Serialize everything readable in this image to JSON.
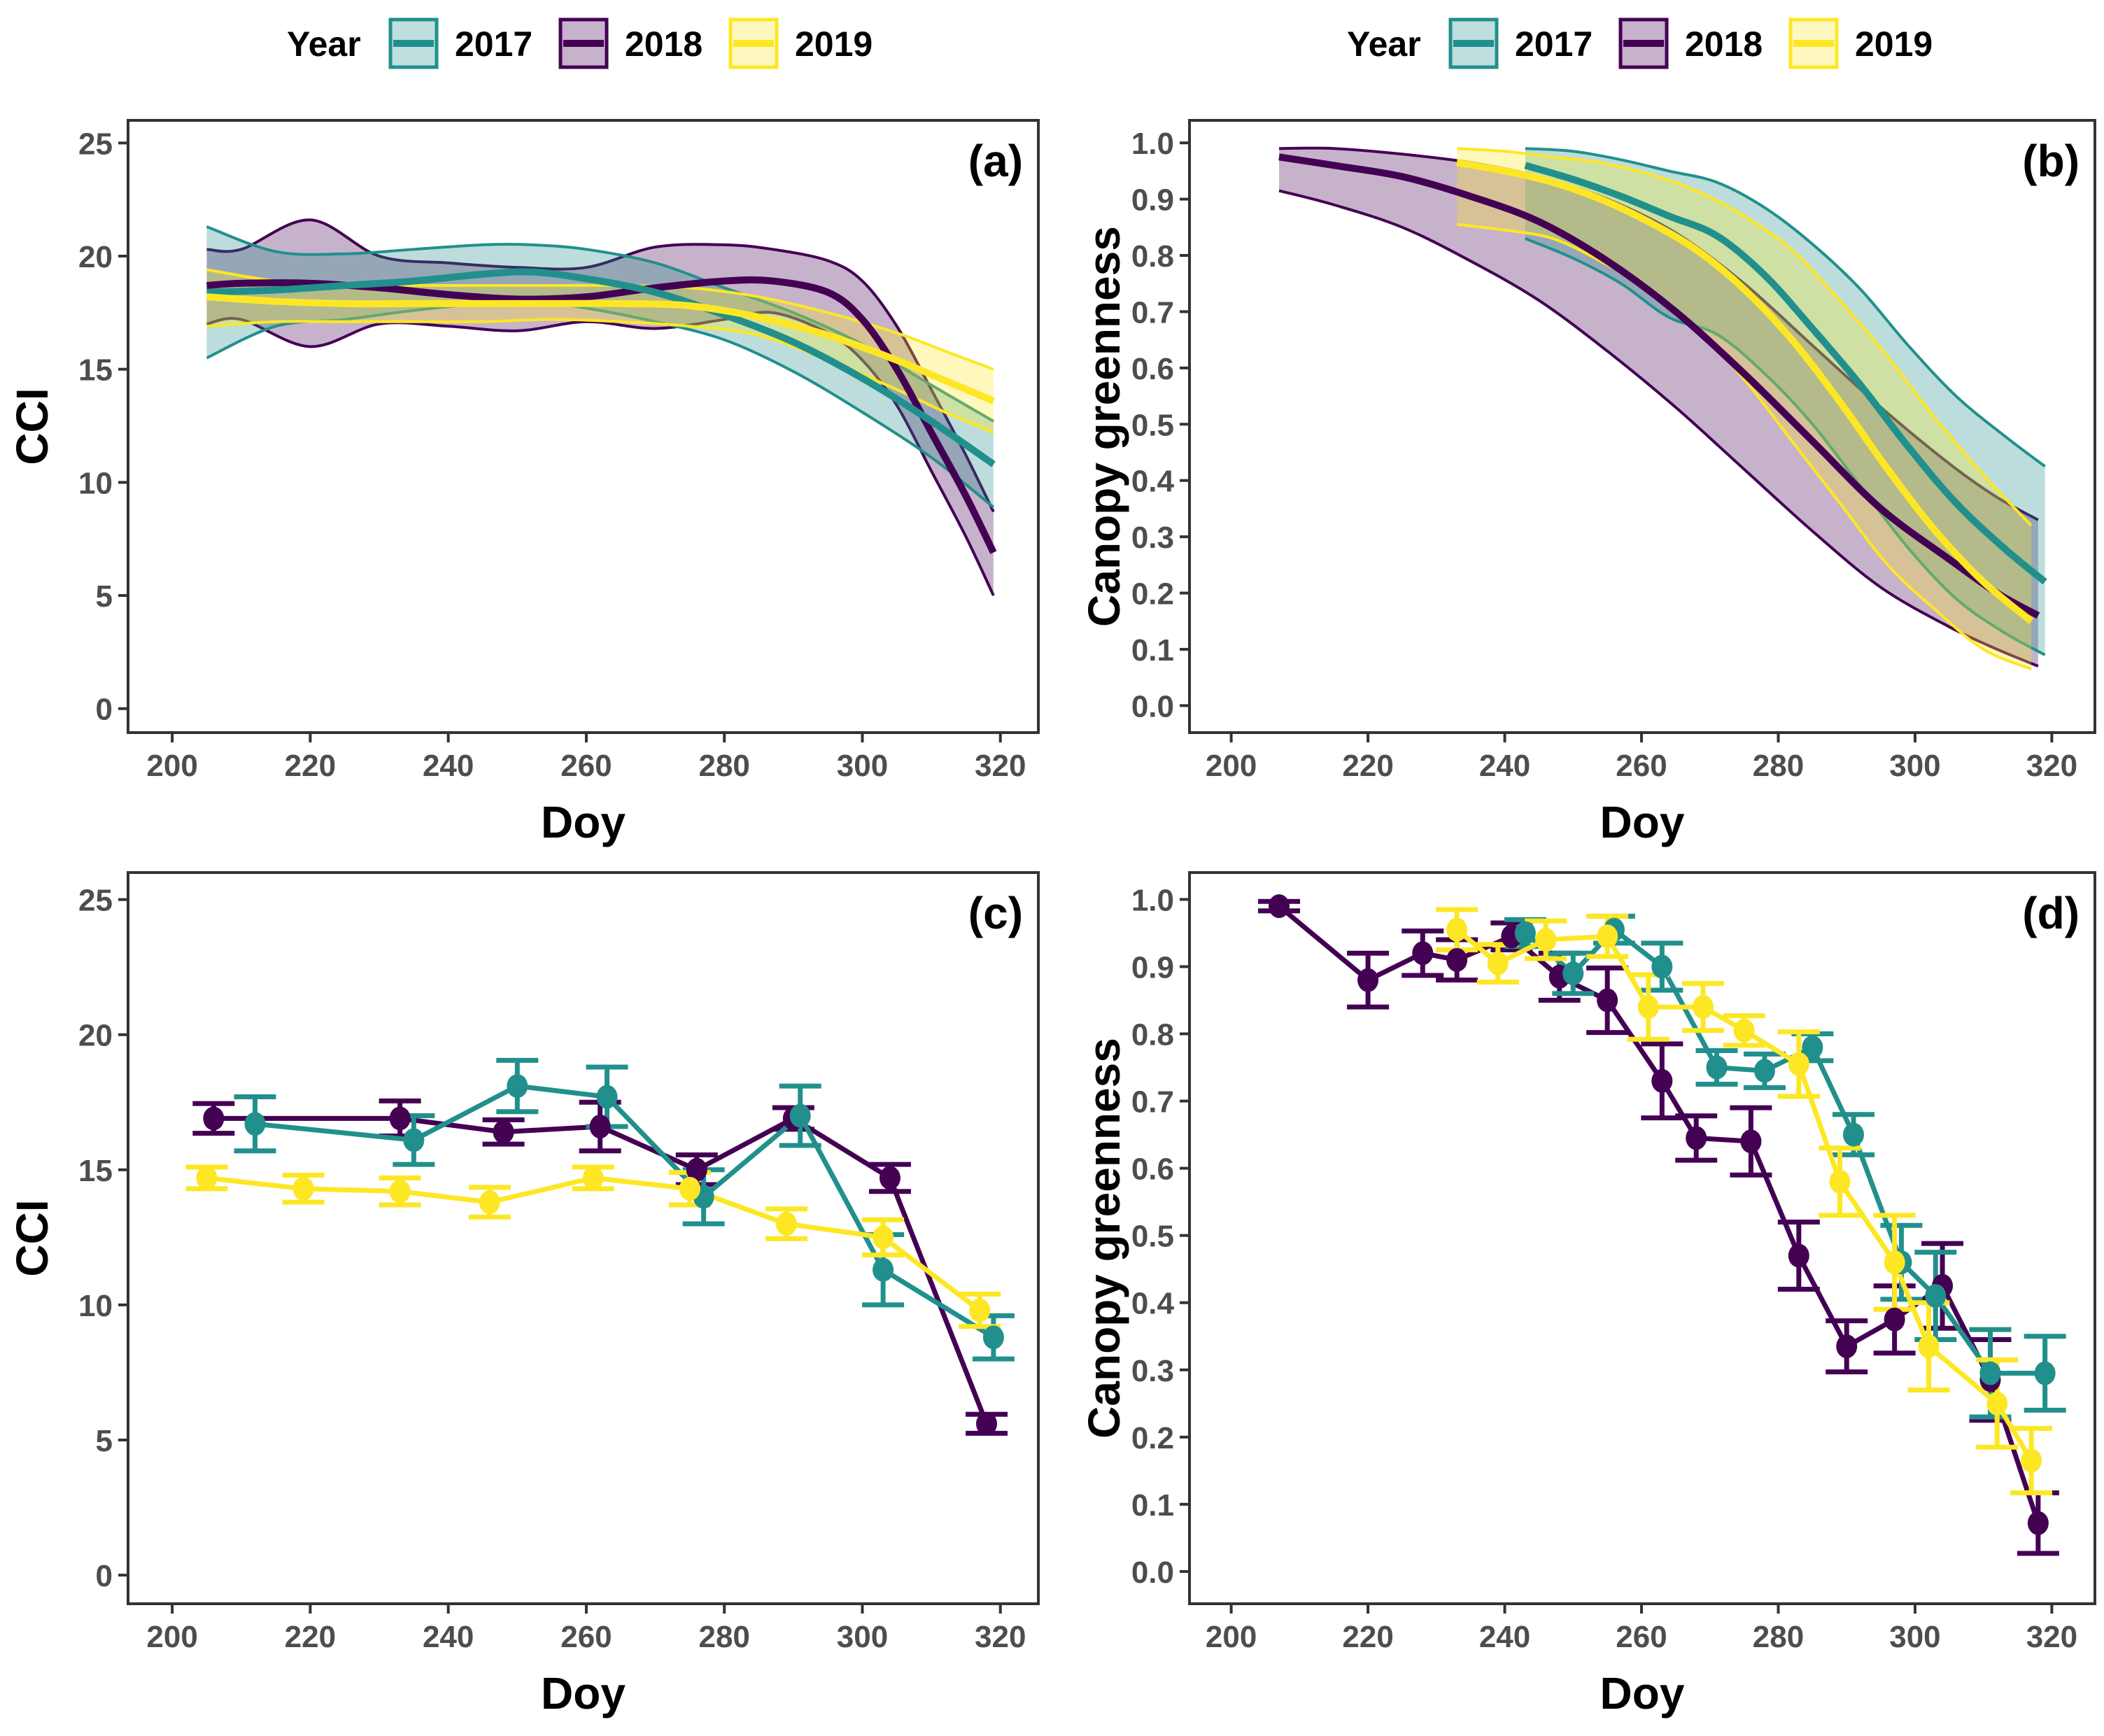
{
  "legend": {
    "title": "Year",
    "items": [
      {
        "label": "2017",
        "color": "#21908C",
        "fill": "#BFDFDE"
      },
      {
        "label": "2018",
        "color": "#440154",
        "fill": "#C7B2CC"
      },
      {
        "label": "2019",
        "color": "#FDE725",
        "fill": "#FEF8C0"
      }
    ]
  },
  "chart_data": [
    {
      "panel": "(a)",
      "type": "line",
      "subtype": "smoothed-with-confidence-band",
      "xlabel": "Doy",
      "ylabel": "CCI",
      "xlim": [
        193.6,
        325.5
      ],
      "ylim": [
        -1.06,
        26.0
      ],
      "xticks": [
        200,
        220,
        240,
        260,
        280,
        300,
        320
      ],
      "yticks": [
        0,
        5,
        10,
        15,
        20,
        25
      ],
      "grid": false,
      "series": [
        {
          "name": "2017",
          "x": [
            205,
            215,
            225,
            235,
            245,
            252,
            260,
            270,
            280,
            290,
            300,
            310,
            319
          ],
          "y": [
            18.4,
            18.5,
            18.7,
            18.9,
            19.2,
            19.3,
            19.0,
            18.4,
            17.4,
            16.2,
            14.6,
            12.7,
            10.8
          ],
          "lower": [
            15.5,
            16.9,
            17.2,
            17.6,
            17.9,
            18.0,
            17.7,
            17.1,
            16.3,
            14.9,
            13.1,
            11.1,
            8.9
          ],
          "upper": [
            21.3,
            20.2,
            20.1,
            20.3,
            20.5,
            20.5,
            20.3,
            19.7,
            18.6,
            17.5,
            16.1,
            14.3,
            12.7
          ]
        },
        {
          "name": "2018",
          "x": [
            205,
            210,
            220,
            230,
            240,
            250,
            260,
            270,
            280,
            287,
            295,
            300,
            305,
            310,
            315,
            319
          ],
          "y": [
            18.7,
            18.8,
            18.8,
            18.6,
            18.3,
            18.1,
            18.2,
            18.6,
            18.9,
            18.9,
            18.4,
            17.2,
            15.0,
            12.2,
            9.4,
            6.9
          ],
          "lower": [
            17.0,
            17.2,
            16.0,
            17.0,
            16.9,
            16.7,
            17.1,
            16.8,
            17.2,
            17.5,
            16.6,
            15.4,
            13.4,
            10.5,
            7.6,
            5.0
          ],
          "upper": [
            20.3,
            20.3,
            21.6,
            20.0,
            19.7,
            19.5,
            19.5,
            20.4,
            20.5,
            20.3,
            19.8,
            18.9,
            16.9,
            14.1,
            11.2,
            8.7
          ]
        },
        {
          "name": "2019",
          "x": [
            205,
            215,
            225,
            235,
            245,
            255,
            265,
            275,
            285,
            295,
            305,
            312,
            319
          ],
          "y": [
            18.2,
            18.0,
            17.9,
            17.9,
            17.9,
            17.9,
            17.9,
            17.8,
            17.3,
            16.5,
            15.4,
            14.5,
            13.6
          ],
          "lower": [
            16.9,
            17.1,
            17.1,
            17.1,
            17.1,
            17.2,
            17.1,
            16.9,
            16.5,
            15.4,
            14.1,
            13.1,
            12.2
          ],
          "upper": [
            19.4,
            18.9,
            18.7,
            18.7,
            18.7,
            18.7,
            18.7,
            18.6,
            18.2,
            17.5,
            16.6,
            15.8,
            15.0
          ]
        }
      ]
    },
    {
      "panel": "(b)",
      "type": "line",
      "subtype": "smoothed-with-confidence-band",
      "xlabel": "Doy",
      "ylabel": "Canopy greenness",
      "xlim": [
        193.9,
        326.3
      ],
      "ylim": [
        -0.048,
        1.04
      ],
      "xticks": [
        200,
        220,
        240,
        260,
        280,
        300,
        320
      ],
      "yticks": [
        0.0,
        0.1,
        0.2,
        0.3,
        0.4,
        0.5,
        0.6,
        0.7,
        0.8,
        0.9,
        1.0
      ],
      "grid": false,
      "series": [
        {
          "name": "2017",
          "x": [
            243,
            250,
            257,
            264,
            271,
            278,
            285,
            292,
            299,
            306,
            313,
            319
          ],
          "y": [
            0.96,
            0.935,
            0.905,
            0.87,
            0.835,
            0.765,
            0.67,
            0.57,
            0.46,
            0.36,
            0.28,
            0.22
          ],
          "lower": [
            0.83,
            0.795,
            0.75,
            0.69,
            0.66,
            0.59,
            0.5,
            0.39,
            0.28,
            0.19,
            0.13,
            0.09
          ],
          "upper": [
            0.99,
            0.985,
            0.97,
            0.95,
            0.93,
            0.885,
            0.82,
            0.74,
            0.64,
            0.55,
            0.48,
            0.425
          ]
        },
        {
          "name": "2018",
          "x": [
            207,
            215,
            225,
            235,
            245,
            255,
            265,
            275,
            285,
            295,
            305,
            312,
            318
          ],
          "y": [
            0.975,
            0.96,
            0.94,
            0.905,
            0.86,
            0.79,
            0.7,
            0.59,
            0.47,
            0.35,
            0.26,
            0.2,
            0.16
          ],
          "lower": [
            0.915,
            0.89,
            0.85,
            0.79,
            0.72,
            0.63,
            0.53,
            0.42,
            0.31,
            0.21,
            0.14,
            0.1,
            0.07
          ],
          "upper": [
            0.99,
            0.99,
            0.98,
            0.965,
            0.94,
            0.9,
            0.84,
            0.75,
            0.64,
            0.53,
            0.43,
            0.37,
            0.33
          ]
        },
        {
          "name": "2019",
          "x": [
            233,
            240,
            247,
            254,
            261,
            268,
            275,
            282,
            289,
            296,
            303,
            310,
            317
          ],
          "y": [
            0.965,
            0.95,
            0.93,
            0.9,
            0.86,
            0.81,
            0.74,
            0.65,
            0.54,
            0.42,
            0.31,
            0.22,
            0.15
          ],
          "lower": [
            0.855,
            0.845,
            0.83,
            0.79,
            0.74,
            0.67,
            0.58,
            0.47,
            0.36,
            0.25,
            0.17,
            0.1,
            0.065
          ],
          "upper": [
            0.99,
            0.985,
            0.975,
            0.965,
            0.945,
            0.915,
            0.87,
            0.81,
            0.72,
            0.62,
            0.51,
            0.41,
            0.32
          ]
        }
      ]
    },
    {
      "panel": "(c)",
      "type": "line",
      "subtype": "points-with-error-bars",
      "xlabel": "Doy",
      "ylabel": "CCI",
      "xlim": [
        193.6,
        325.5
      ],
      "ylim": [
        -1.06,
        26.0
      ],
      "xticks": [
        200,
        220,
        240,
        260,
        280,
        300,
        320
      ],
      "yticks": [
        0,
        5,
        10,
        15,
        20,
        25
      ],
      "grid": false,
      "series": [
        {
          "name": "2017",
          "x": [
            212,
            235,
            250,
            263,
            277,
            291,
            303,
            319
          ],
          "y": [
            16.7,
            16.1,
            18.1,
            17.7,
            14.0,
            17.0,
            11.3,
            8.8
          ],
          "err": [
            1.0,
            0.9,
            0.95,
            1.1,
            1.0,
            1.1,
            1.3,
            0.8
          ]
        },
        {
          "name": "2018",
          "x": [
            206,
            233,
            248,
            262,
            276,
            290,
            304,
            318
          ],
          "y": [
            16.9,
            16.9,
            16.4,
            16.6,
            15.0,
            16.9,
            14.7,
            5.6
          ],
          "err": [
            0.55,
            0.65,
            0.45,
            0.9,
            0.55,
            0.4,
            0.5,
            0.35
          ]
        },
        {
          "name": "2019",
          "x": [
            205,
            219,
            233,
            246,
            261,
            275,
            289,
            303,
            317
          ],
          "y": [
            14.7,
            14.3,
            14.2,
            13.8,
            14.7,
            14.3,
            13.0,
            12.5,
            9.8
          ],
          "err": [
            0.4,
            0.5,
            0.5,
            0.55,
            0.4,
            0.6,
            0.55,
            0.65,
            0.6
          ]
        }
      ]
    },
    {
      "panel": "(d)",
      "type": "line",
      "subtype": "points-with-error-bars",
      "xlabel": "Doy",
      "ylabel": "Canopy greenness",
      "xlim": [
        193.9,
        326.3
      ],
      "ylim": [
        -0.048,
        1.04
      ],
      "xticks": [
        200,
        220,
        240,
        260,
        280,
        300,
        320
      ],
      "yticks": [
        0.0,
        0.1,
        0.2,
        0.3,
        0.4,
        0.5,
        0.6,
        0.7,
        0.8,
        0.9,
        1.0
      ],
      "grid": false,
      "series": [
        {
          "name": "2017",
          "x": [
            243,
            250,
            256,
            263,
            271,
            278,
            285,
            291,
            298,
            303,
            311,
            319
          ],
          "y": [
            0.95,
            0.89,
            0.955,
            0.9,
            0.75,
            0.745,
            0.78,
            0.65,
            0.46,
            0.41,
            0.295,
            0.295
          ],
          "err": [
            0.02,
            0.03,
            0.02,
            0.035,
            0.025,
            0.025,
            0.02,
            0.03,
            0.055,
            0.065,
            0.065,
            0.055
          ]
        },
        {
          "name": "2018",
          "x": [
            207,
            220,
            228,
            233,
            241,
            248,
            255,
            263,
            268,
            276,
            283,
            290,
            297,
            304,
            311,
            318
          ],
          "y": [
            0.99,
            0.88,
            0.92,
            0.91,
            0.945,
            0.885,
            0.85,
            0.73,
            0.645,
            0.64,
            0.47,
            0.335,
            0.375,
            0.425,
            0.285,
            0.072
          ],
          "err": [
            0.007,
            0.04,
            0.033,
            0.03,
            0.02,
            0.035,
            0.048,
            0.055,
            0.033,
            0.05,
            0.05,
            0.038,
            0.05,
            0.063,
            0.06,
            0.045
          ]
        },
        {
          "name": "2019",
          "x": [
            233,
            239,
            246,
            255,
            261,
            269,
            275,
            283,
            289,
            297,
            302,
            312,
            317
          ],
          "y": [
            0.955,
            0.905,
            0.94,
            0.945,
            0.84,
            0.84,
            0.805,
            0.755,
            0.58,
            0.46,
            0.335,
            0.25,
            0.165
          ],
          "err": [
            0.03,
            0.028,
            0.028,
            0.03,
            0.048,
            0.035,
            0.022,
            0.048,
            0.05,
            0.07,
            0.065,
            0.065,
            0.048
          ]
        }
      ]
    }
  ]
}
